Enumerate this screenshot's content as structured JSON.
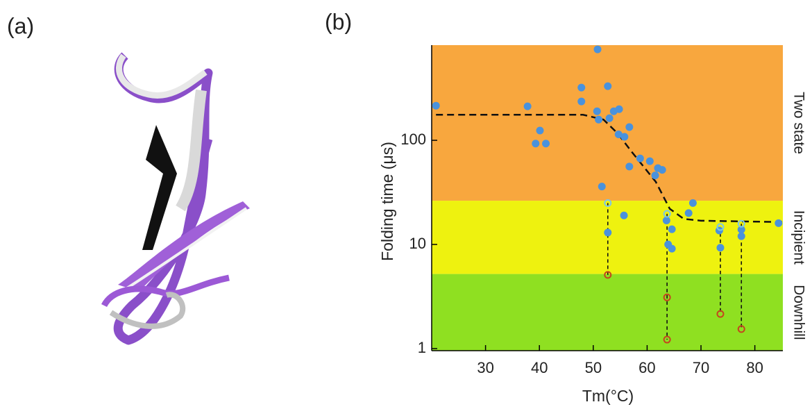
{
  "panels": [
    "(a)",
    "(b)"
  ],
  "chart_data": {
    "type": "scatter",
    "log_y": true,
    "xlabel": "Tm(°C)",
    "ylabel": "Folding time (μs)",
    "xlim": [
      20,
      85.2
    ],
    "ylim": [
      0.955,
      820
    ],
    "xticks": [
      30,
      40,
      50,
      60,
      70,
      80
    ],
    "yticks": [
      1,
      10,
      100
    ],
    "bands": [
      {
        "from": 26.3,
        "to": 820,
        "color": "#f8a73e",
        "label": "Two state"
      },
      {
        "from": 5.2,
        "to": 26.3,
        "color": "#eef20f",
        "label": "Incipient"
      },
      {
        "from": 0.955,
        "to": 5.2,
        "color": "#8fe021",
        "label": "Downhill"
      }
    ],
    "series": [
      {
        "style": "filled",
        "color": "#4a92dc",
        "x": [
          20.8,
          37.8,
          40.1,
          39.3,
          41.2,
          47.8,
          47.8,
          50.8,
          52.7,
          50.7,
          51.0,
          53.8,
          54.8,
          53.0,
          54.7,
          55.8,
          56.7,
          56.7,
          58.7,
          60.5,
          62.0,
          61.5,
          62.8,
          51.6,
          55.7,
          52.7,
          63.6,
          64.6,
          63.9,
          64.6,
          68.5,
          67.7,
          73.4,
          73.6,
          77.5,
          77.5,
          84.4
        ],
        "values": [
          215,
          212,
          124,
          93,
          93,
          321,
          236,
          747,
          331,
          190,
          158,
          190,
          199,
          163,
          114,
          108,
          134,
          56,
          67,
          63,
          54,
          46,
          52,
          36,
          19,
          13,
          17,
          14,
          10,
          9.1,
          25,
          20,
          13.6,
          9.3,
          13.9,
          12,
          16
        ]
      },
      {
        "style": "hollow",
        "color": "#7cc7e8",
        "x": [
          52.7,
          63.7,
          73.6,
          77.5
        ],
        "values": [
          25,
          19.7,
          14.7,
          15.8
        ]
      },
      {
        "style": "hollow",
        "color": "#c4461e",
        "x": [
          52.7,
          63.7,
          63.7,
          73.6,
          77.5
        ],
        "values": [
          5.1,
          3.1,
          1.22,
          2.15,
          1.54
        ]
      },
      {
        "style": "line",
        "color": "#111111",
        "x": [
          20.8,
          48.1,
          51.9,
          54.5,
          57.1,
          61.6,
          64.2,
          66.8,
          70,
          85.2
        ],
        "values": [
          176,
          176,
          158,
          117,
          78,
          40,
          22,
          17.6,
          16.9,
          16.4
        ]
      }
    ]
  }
}
